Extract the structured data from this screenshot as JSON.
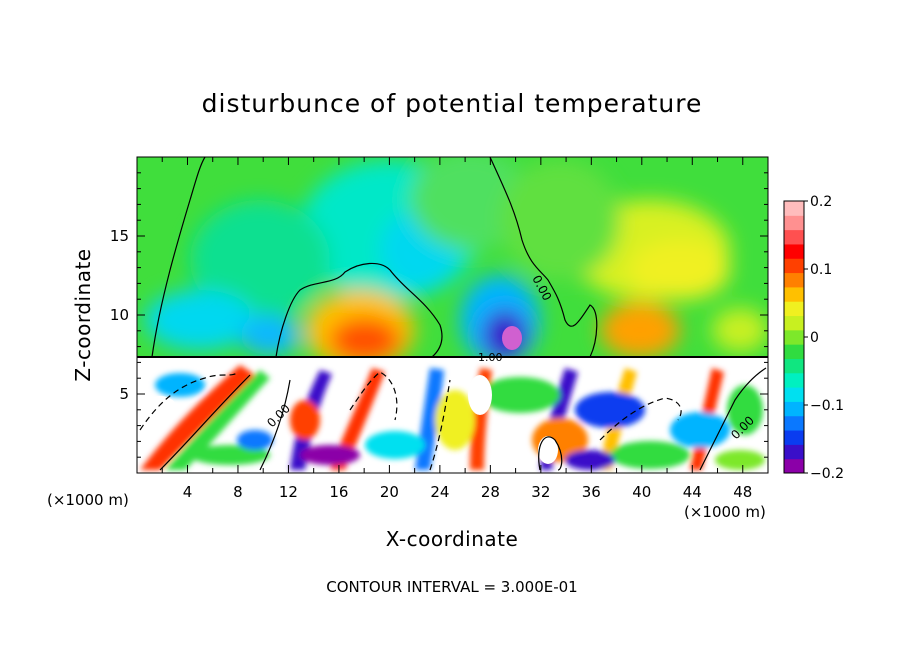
{
  "chart_data": {
    "type": "heatmap",
    "title": "disturbunce of potential temperature",
    "xlabel": "X-coordinate",
    "ylabel": "Z-coordinate",
    "x_unit": "(×1000 m)",
    "x_unit_right": "(×1000 m)",
    "xlim": [
      0,
      50
    ],
    "ylim": [
      0,
      20
    ],
    "x_ticks": [
      4,
      8,
      12,
      16,
      20,
      24,
      28,
      32,
      36,
      40,
      44,
      48
    ],
    "y_ticks": [
      5,
      10,
      15
    ],
    "colorbar": {
      "min": -0.2,
      "max": 0.2,
      "ticks": [
        "0.2",
        "0.1",
        "0",
        "−0.1",
        "−0.2"
      ],
      "colors": [
        "#8b00a8",
        "#3a0fc9",
        "#0a3cf0",
        "#0a78ff",
        "#00b4ff",
        "#00e0f0",
        "#00f0c0",
        "#10e680",
        "#30dc40",
        "#7de82a",
        "#c8f020",
        "#f0f020",
        "#ffc000",
        "#ff8000",
        "#ff4000",
        "#ff0000",
        "#ff5050",
        "#ff9090",
        "#ffbcbc"
      ]
    },
    "contour_labels": [
      "0.00",
      "0.00",
      "0.00",
      "1.00"
    ],
    "annotation": "CONTOUR INTERVAL = 3.000E-01"
  }
}
